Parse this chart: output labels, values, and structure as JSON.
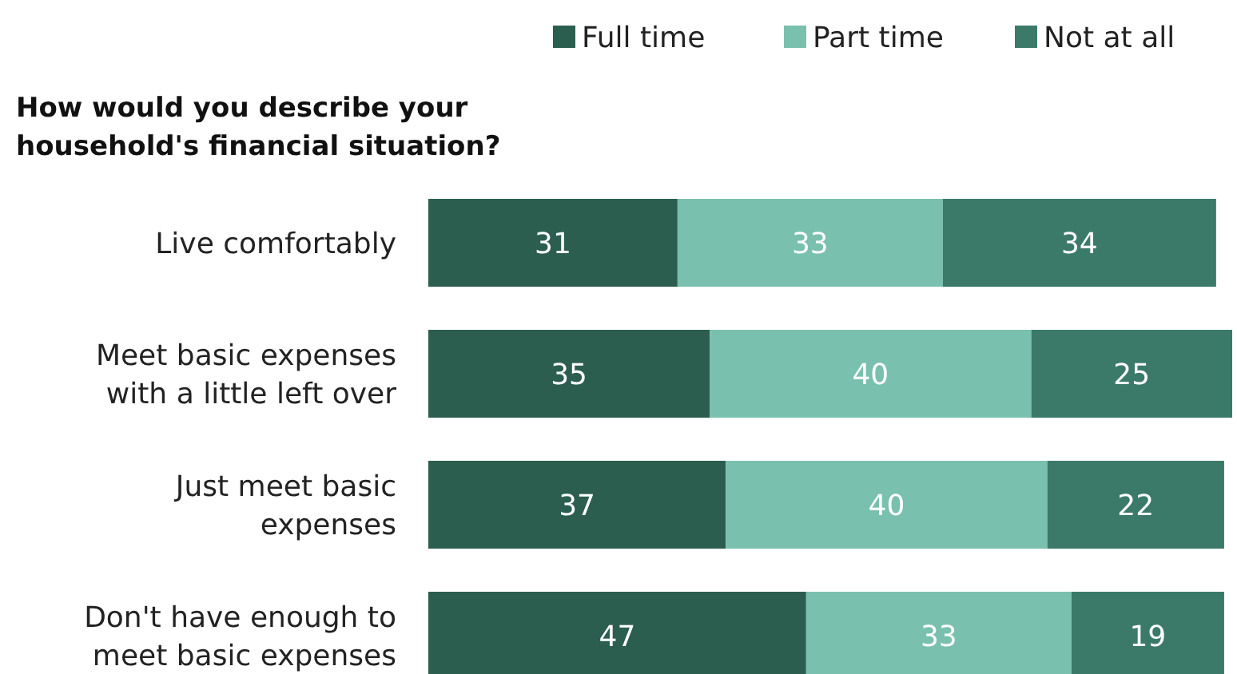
{
  "chart_data": {
    "type": "bar",
    "orientation": "horizontal",
    "stacked": true,
    "title": "How would you describe your household's financial situation?",
    "categories": [
      "Live comfortably",
      "Meet basic expenses with a little left over",
      "Just meet basic expenses",
      "Don't have enough to meet basic expenses"
    ],
    "series": [
      {
        "name": "Full time",
        "color": "#2c5e50",
        "values": [
          31,
          35,
          37,
          47
        ]
      },
      {
        "name": "Part time",
        "color": "#79c0ae",
        "values": [
          33,
          40,
          40,
          33
        ]
      },
      {
        "name": "Not at all",
        "color": "#3b7a69",
        "values": [
          34,
          25,
          22,
          19
        ]
      }
    ],
    "xlim": [
      0,
      100
    ],
    "data_labels": true,
    "legend": "top right"
  }
}
